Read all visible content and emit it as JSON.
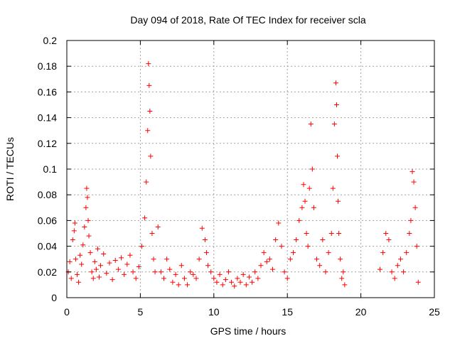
{
  "chart_data": {
    "type": "scatter",
    "title": "Day 094 of 2018, Rate Of TEC Index for receiver scla",
    "xlabel": "GPS time / hours",
    "ylabel": "ROTI / TECUs",
    "xlim": [
      0,
      25
    ],
    "ylim": [
      0,
      0.2
    ],
    "xticks": [
      0,
      5,
      10,
      15,
      20,
      25
    ],
    "xtick_labels": [
      "0",
      "5",
      "10",
      "15",
      "20",
      "25"
    ],
    "yticks": [
      0,
      0.02,
      0.04,
      0.06,
      0.08,
      0.1,
      0.12,
      0.14,
      0.16,
      0.18,
      0.2
    ],
    "ytick_labels": [
      "0",
      "0.02",
      "0.04",
      "0.06",
      "0.08",
      "0.1",
      "0.12",
      "0.14",
      "0.16",
      "0.18",
      "0.2"
    ],
    "grid": true,
    "marker": "+",
    "color": "#ff0000",
    "series": [
      {
        "name": "ROTI",
        "x": [
          0.1,
          0.2,
          0.3,
          0.4,
          0.5,
          0.55,
          0.6,
          0.7,
          0.8,
          0.9,
          1.0,
          1.1,
          1.2,
          1.3,
          1.35,
          1.4,
          1.45,
          1.5,
          1.6,
          1.7,
          1.8,
          1.9,
          2.0,
          2.1,
          2.2,
          2.3,
          2.5,
          2.7,
          2.9,
          3.1,
          3.3,
          3.5,
          3.7,
          3.9,
          4.1,
          4.3,
          4.5,
          4.7,
          4.9,
          5.1,
          5.3,
          5.4,
          5.5,
          5.55,
          5.6,
          5.65,
          5.7,
          5.8,
          5.9,
          6.0,
          6.2,
          6.4,
          6.6,
          6.8,
          7.0,
          7.2,
          7.4,
          7.6,
          7.8,
          8.0,
          8.2,
          8.4,
          8.6,
          8.8,
          9.0,
          9.2,
          9.4,
          9.5,
          9.6,
          9.8,
          10.0,
          10.2,
          10.4,
          10.6,
          10.8,
          11.0,
          11.2,
          11.4,
          11.6,
          11.8,
          12.0,
          12.2,
          12.4,
          12.6,
          12.8,
          13.0,
          13.2,
          13.4,
          13.6,
          13.8,
          14.0,
          14.2,
          14.4,
          14.6,
          14.8,
          15.0,
          15.2,
          15.4,
          15.6,
          15.8,
          16.0,
          16.1,
          16.2,
          16.3,
          16.4,
          16.5,
          16.6,
          16.7,
          16.8,
          17.0,
          17.2,
          17.4,
          17.6,
          17.8,
          18.0,
          18.1,
          18.2,
          18.3,
          18.35,
          18.4,
          18.45,
          18.5,
          18.6,
          18.7,
          18.8,
          18.9,
          21.3,
          21.5,
          21.7,
          21.9,
          22.1,
          22.3,
          22.5,
          22.7,
          22.9,
          23.1,
          23.3,
          23.4,
          23.5,
          23.6,
          23.7,
          23.8,
          23.9
        ],
        "y": [
          0.02,
          0.028,
          0.015,
          0.045,
          0.052,
          0.058,
          0.03,
          0.018,
          0.012,
          0.033,
          0.026,
          0.041,
          0.055,
          0.07,
          0.085,
          0.078,
          0.06,
          0.048,
          0.035,
          0.02,
          0.015,
          0.028,
          0.022,
          0.038,
          0.016,
          0.025,
          0.034,
          0.019,
          0.027,
          0.014,
          0.029,
          0.022,
          0.031,
          0.018,
          0.026,
          0.033,
          0.02,
          0.015,
          0.024,
          0.04,
          0.062,
          0.09,
          0.13,
          0.182,
          0.165,
          0.145,
          0.11,
          0.05,
          0.03,
          0.02,
          0.055,
          0.02,
          0.015,
          0.03,
          0.022,
          0.012,
          0.018,
          0.01,
          0.025,
          0.015,
          0.01,
          0.02,
          0.018,
          0.015,
          0.03,
          0.054,
          0.045,
          0.035,
          0.025,
          0.02,
          0.015,
          0.012,
          0.018,
          0.01,
          0.014,
          0.02,
          0.012,
          0.009,
          0.015,
          0.012,
          0.018,
          0.01,
          0.016,
          0.012,
          0.02,
          0.015,
          0.025,
          0.035,
          0.028,
          0.03,
          0.022,
          0.045,
          0.058,
          0.04,
          0.02,
          0.015,
          0.03,
          0.035,
          0.045,
          0.06,
          0.07,
          0.088,
          0.075,
          0.05,
          0.04,
          0.085,
          0.135,
          0.1,
          0.07,
          0.03,
          0.025,
          0.045,
          0.02,
          0.035,
          0.05,
          0.085,
          0.135,
          0.167,
          0.15,
          0.11,
          0.075,
          0.05,
          0.03,
          0.015,
          0.02,
          0.01,
          0.022,
          0.035,
          0.05,
          0.045,
          0.02,
          0.015,
          0.025,
          0.03,
          0.02,
          0.035,
          0.05,
          0.06,
          0.098,
          0.09,
          0.07,
          0.04,
          0.012
        ]
      }
    ]
  }
}
